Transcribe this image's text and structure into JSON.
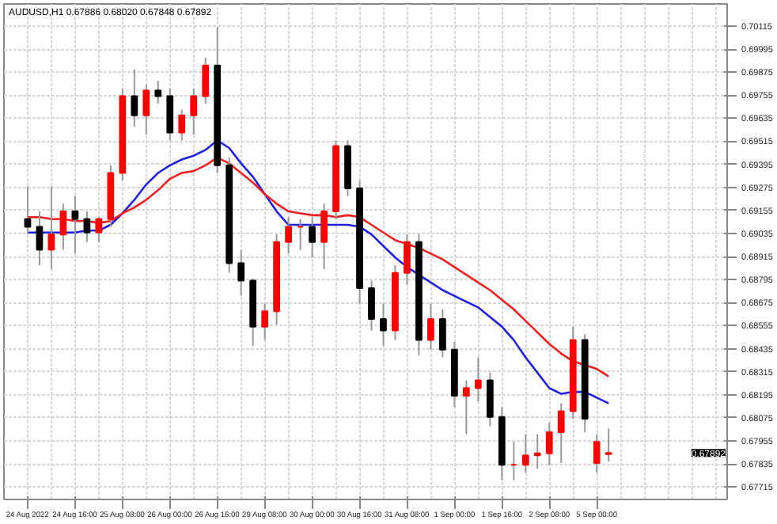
{
  "chart_data": {
    "type": "candlestick",
    "title": "AUDUSD,H1 0.67886 0.68020 0.67848 0.67892",
    "categories": [
      "24 Aug 2022",
      null,
      null,
      null,
      "24 Aug 16:00",
      null,
      null,
      null,
      "25 Aug 08:00",
      null,
      null,
      null,
      "26 Aug 00:00",
      null,
      null,
      null,
      "26 Aug 16:00",
      null,
      null,
      null,
      "29 Aug 08:00",
      null,
      null,
      null,
      "30 Aug 00:00",
      null,
      null,
      null,
      "30 Aug 16:00",
      null,
      null,
      null,
      "31 Aug 08:00",
      null,
      null,
      null,
      "1 Sep 00:00",
      null,
      null,
      null,
      "1 Sep 16:00",
      null,
      null,
      null,
      "2 Sep 08:00",
      null,
      null,
      null,
      "5 Sep 00:00",
      null
    ],
    "ohlc": [
      [
        0.6911,
        0.6928,
        0.6903,
        0.6907
      ],
      [
        0.6907,
        0.6915,
        0.6887,
        0.6895
      ],
      [
        0.6895,
        0.6928,
        0.6885,
        0.6903
      ],
      [
        0.6903,
        0.6919,
        0.6895,
        0.6915
      ],
      [
        0.6915,
        0.6923,
        0.6893,
        0.6911
      ],
      [
        0.6911,
        0.6915,
        0.6899,
        0.6904
      ],
      [
        0.6904,
        0.6912,
        0.6899,
        0.6911
      ],
      [
        0.6911,
        0.6939,
        0.6907,
        0.6935
      ],
      [
        0.6935,
        0.6979,
        0.6931,
        0.6975
      ],
      [
        0.6975,
        0.6989,
        0.6959,
        0.6965
      ],
      [
        0.6965,
        0.6981,
        0.6955,
        0.6978
      ],
      [
        0.6978,
        0.6983,
        0.6971,
        0.6975
      ],
      [
        0.6975,
        0.6979,
        0.6952,
        0.6956
      ],
      [
        0.6956,
        0.6968,
        0.6952,
        0.6965
      ],
      [
        0.6965,
        0.6979,
        0.6955,
        0.6975
      ],
      [
        0.6975,
        0.6995,
        0.6971,
        0.6991
      ],
      [
        0.6991,
        0.7011,
        0.6935,
        0.6939
      ],
      [
        0.6939,
        0.6943,
        0.6883,
        0.6888
      ],
      [
        0.6888,
        0.6895,
        0.6871,
        0.6879
      ],
      [
        0.6879,
        0.688,
        0.6845,
        0.6855
      ],
      [
        0.6855,
        0.6867,
        0.6848,
        0.6863
      ],
      [
        0.6863,
        0.6903,
        0.6856,
        0.6899
      ],
      [
        0.6899,
        0.6912,
        0.6893,
        0.6907
      ],
      [
        0.6907,
        0.6911,
        0.6895,
        0.6907
      ],
      [
        0.6907,
        0.6912,
        0.6891,
        0.6899
      ],
      [
        0.6899,
        0.6919,
        0.6885,
        0.6915
      ],
      [
        0.6915,
        0.6952,
        0.6911,
        0.6949
      ],
      [
        0.6949,
        0.6952,
        0.6923,
        0.6927
      ],
      [
        0.6927,
        0.6931,
        0.6867,
        0.6875
      ],
      [
        0.6875,
        0.6879,
        0.6853,
        0.6859
      ],
      [
        0.6859,
        0.6867,
        0.6845,
        0.6853
      ],
      [
        0.6853,
        0.6887,
        0.6848,
        0.6883
      ],
      [
        0.6883,
        0.6903,
        0.6877,
        0.6899
      ],
      [
        0.6899,
        0.6903,
        0.684,
        0.6848
      ],
      [
        0.6848,
        0.6867,
        0.6843,
        0.6859
      ],
      [
        0.6859,
        0.6864,
        0.6839,
        0.6843
      ],
      [
        0.6843,
        0.6847,
        0.6813,
        0.6819
      ],
      [
        0.6819,
        0.6827,
        0.6799,
        0.6823
      ],
      [
        0.6823,
        0.6839,
        0.6816,
        0.6827
      ],
      [
        0.6827,
        0.6831,
        0.6803,
        0.6808
      ],
      [
        0.6808,
        0.6813,
        0.6775,
        0.6783
      ],
      [
        0.6783,
        0.6795,
        0.6775,
        0.6783
      ],
      [
        0.6783,
        0.6799,
        0.6779,
        0.6788
      ],
      [
        0.6788,
        0.6799,
        0.6781,
        0.6789
      ],
      [
        0.6789,
        0.6805,
        0.6783,
        0.68
      ],
      [
        0.68,
        0.6815,
        0.6784,
        0.6811
      ],
      [
        0.6811,
        0.6855,
        0.6807,
        0.6848
      ],
      [
        0.6848,
        0.6851,
        0.68,
        0.6807
      ],
      [
        0.6784,
        0.6799,
        0.6779,
        0.6795
      ],
      [
        0.67886,
        0.6802,
        0.67848,
        0.67892
      ]
    ],
    "series": [
      {
        "type": "line",
        "color": "#2020e0",
        "values": [
          0.6904,
          0.6904,
          0.6904,
          0.6904,
          0.6904,
          0.6905,
          0.6905,
          0.6908,
          0.6914,
          0.6921,
          0.6929,
          0.6935,
          0.6939,
          0.6942,
          0.6944,
          0.6947,
          0.6952,
          0.6948,
          0.694,
          0.6933,
          0.6924,
          0.6915,
          0.6908,
          0.6908,
          0.6908,
          0.6908,
          0.6908,
          0.6908,
          0.6907,
          0.6903,
          0.6897,
          0.6891,
          0.6886,
          0.6882,
          0.6878,
          0.6874,
          0.6871,
          0.6868,
          0.6865,
          0.686,
          0.6855,
          0.6848,
          0.6839,
          0.6831,
          0.6823,
          0.682,
          0.6821,
          0.6821,
          0.6818,
          0.6815
        ]
      },
      {
        "type": "line",
        "color": "#f02020",
        "values": [
          0.6912,
          0.6912,
          0.6911,
          0.6911,
          0.691,
          0.691,
          0.6909,
          0.691,
          0.6914,
          0.6917,
          0.6921,
          0.6926,
          0.6932,
          0.6935,
          0.6936,
          0.6939,
          0.6943,
          0.694,
          0.6935,
          0.693,
          0.6924,
          0.6919,
          0.6915,
          0.6914,
          0.6913,
          0.6913,
          0.6912,
          0.6913,
          0.6912,
          0.6908,
          0.6904,
          0.69,
          0.6898,
          0.6896,
          0.6893,
          0.689,
          0.6886,
          0.6882,
          0.6878,
          0.6874,
          0.6869,
          0.6864,
          0.6858,
          0.6852,
          0.6846,
          0.6841,
          0.6837,
          0.6835,
          0.6833,
          0.6829
        ]
      }
    ],
    "ylim": [
      0.6765,
      0.7023
    ],
    "yticks": [
      0.70115,
      0.69995,
      0.69875,
      0.69755,
      0.69635,
      0.69515,
      0.69395,
      0.69275,
      0.69155,
      0.69035,
      0.68915,
      0.68795,
      0.68675,
      0.68555,
      0.68435,
      0.68315,
      0.68195,
      0.68075,
      0.67955,
      0.67835,
      0.67715
    ],
    "annotations": [
      "0.67892"
    ],
    "grid": true
  }
}
